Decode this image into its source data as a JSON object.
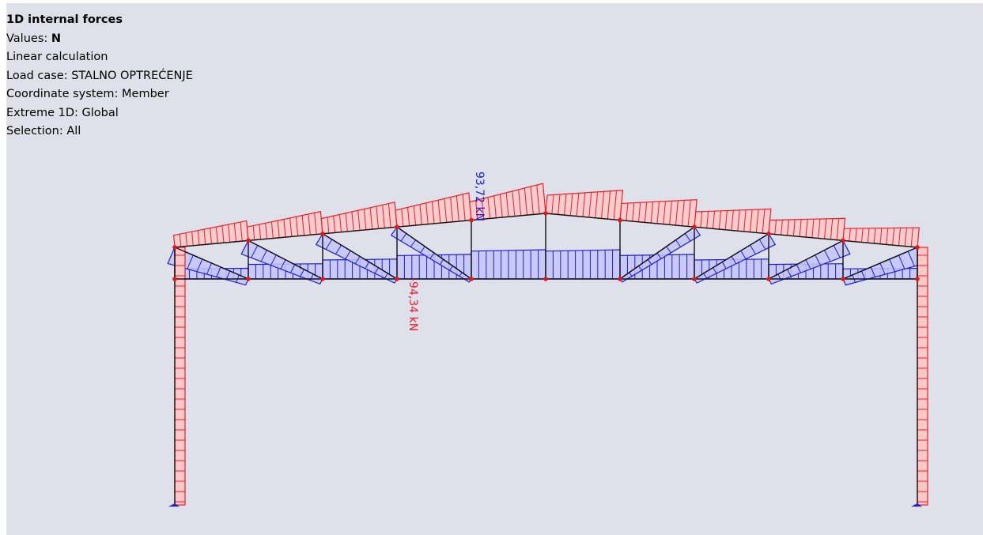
{
  "info_panel": {
    "title": "1D internal forces",
    "values_label": "Values: ",
    "values_value": "N",
    "calculation": "Linear calculation",
    "load_case": "Load case: STALNO OPTREĆENJE",
    "coordinate_system": "Coordinate system: Member",
    "extreme": "Extreme 1D: Global",
    "selection": "Selection: All"
  },
  "diagram": {
    "extreme_labels": {
      "max_tension": "93,72 kN",
      "max_compression": "-94,34 kN"
    },
    "colors": {
      "background": "#dfe1ea",
      "compression_fill": "#ffc8c8",
      "compression_stroke": "#e8202a",
      "tension_fill": "#c4c4f8",
      "tension_stroke": "#1e1ed8",
      "member": "#111111",
      "node": "#e01a1a"
    }
  }
}
